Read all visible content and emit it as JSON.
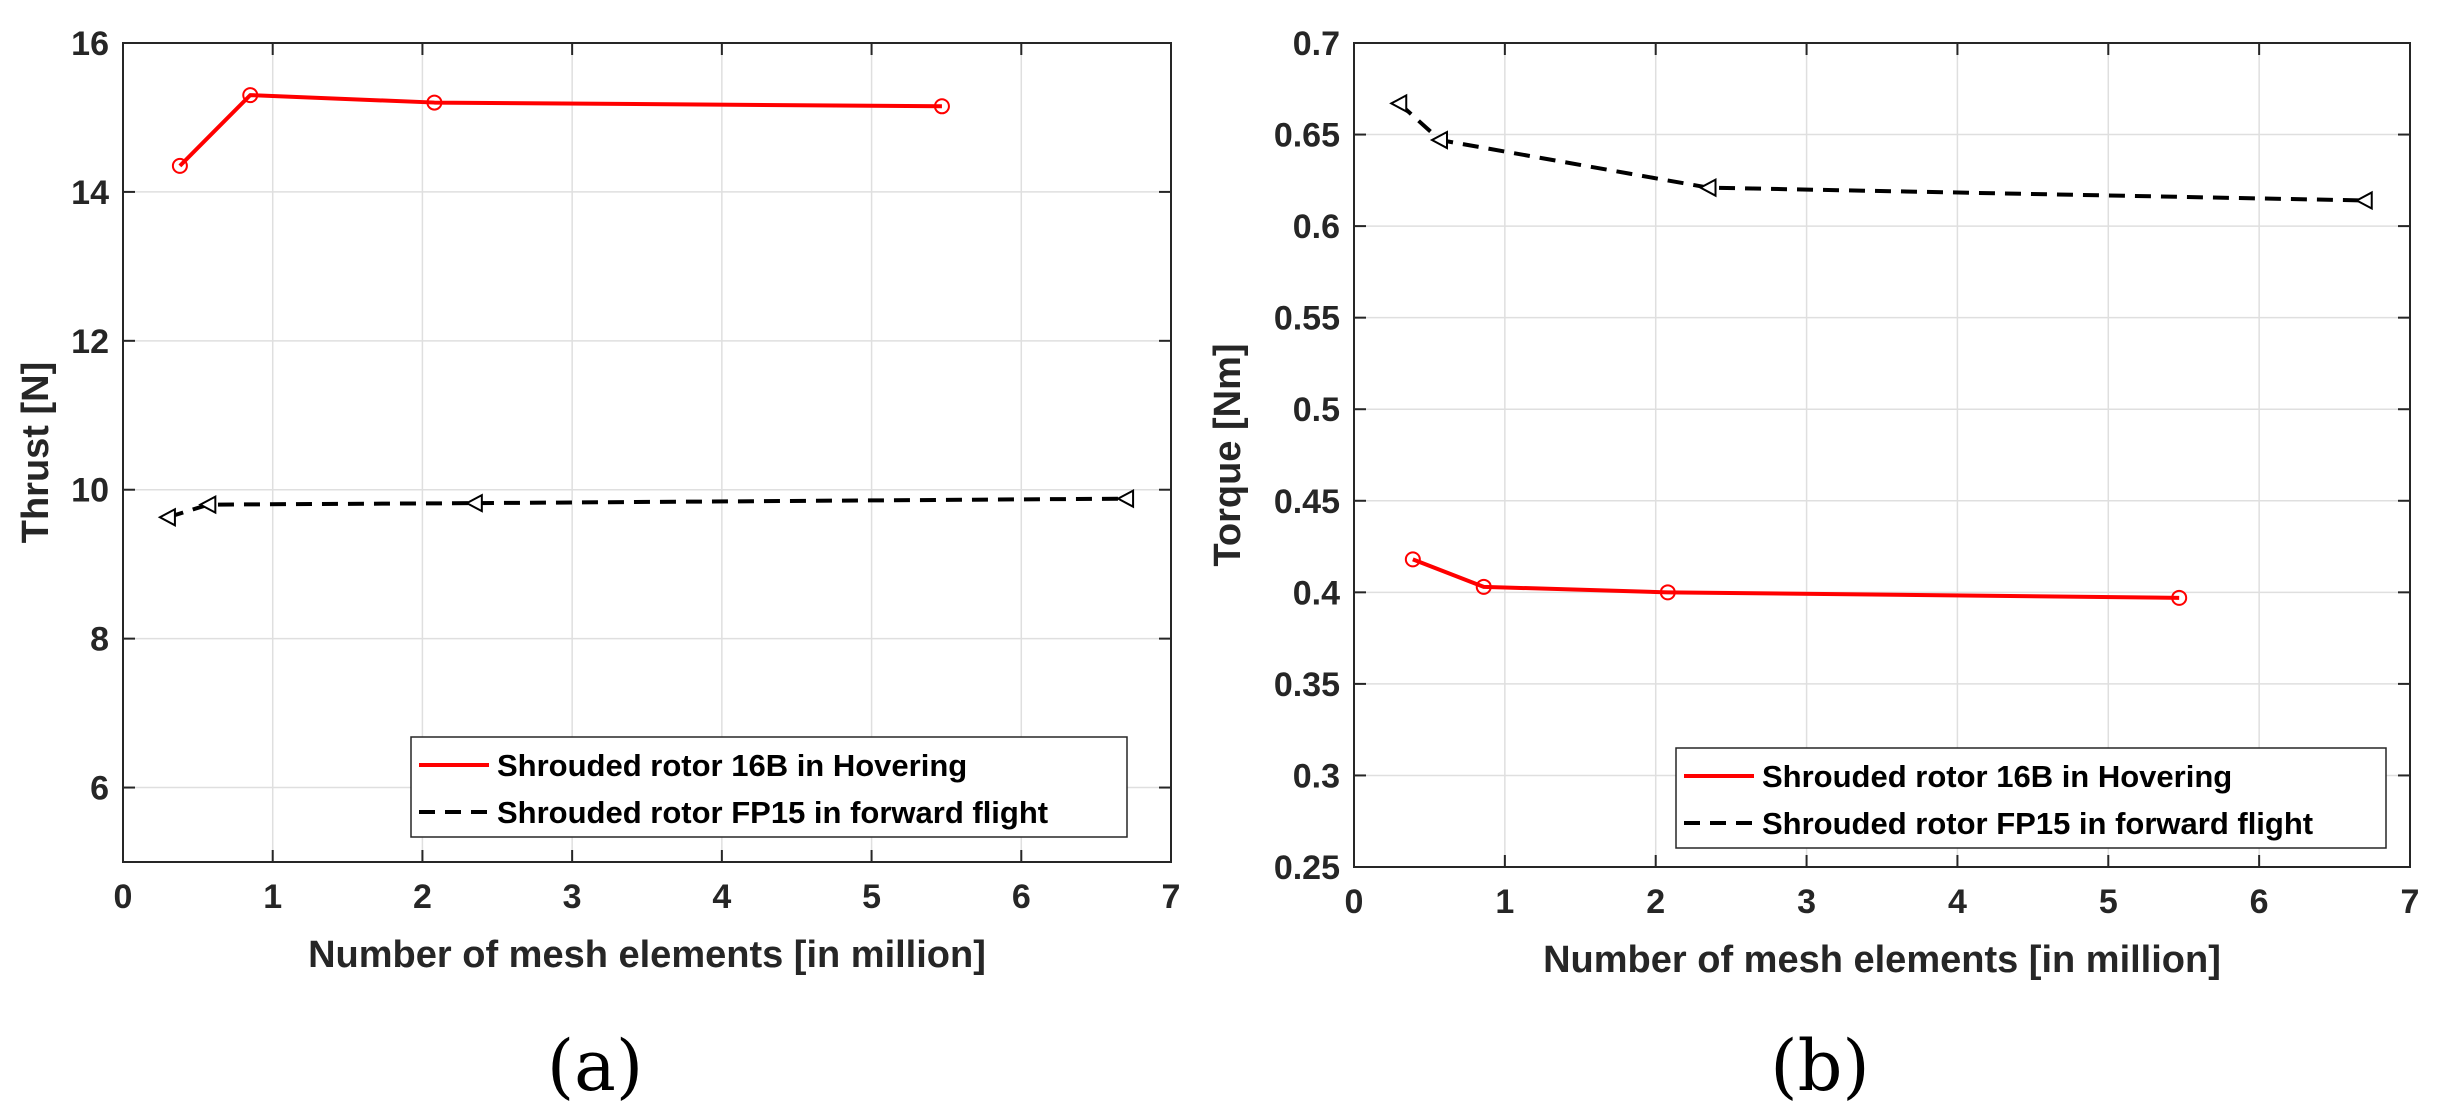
{
  "chart_data": [
    {
      "type": "line",
      "panel_label": "(a)",
      "xlabel": "Number of mesh elements [in million]",
      "ylabel": "Thrust [N]",
      "xlim": [
        0,
        7
      ],
      "ylim": [
        5,
        16
      ],
      "xticks": [
        0,
        1,
        2,
        3,
        4,
        5,
        6,
        7
      ],
      "yticks": [
        6,
        8,
        10,
        12,
        14,
        16
      ],
      "grid": true,
      "legend_position": "bottom-right",
      "series": [
        {
          "name": "Shrouded rotor 16B in Hovering",
          "color": "#ff0000",
          "style": "solid",
          "marker": "circle",
          "x": [
            0.38,
            0.85,
            2.08,
            5.47
          ],
          "y": [
            14.35,
            15.3,
            15.2,
            15.15
          ]
        },
        {
          "name": "Shrouded rotor FP15 in forward flight",
          "color": "#000000",
          "style": "dashed",
          "marker": "triangle-left",
          "x": [
            0.3,
            0.57,
            2.35,
            6.7
          ],
          "y": [
            9.63,
            9.8,
            9.82,
            9.88
          ]
        }
      ]
    },
    {
      "type": "line",
      "panel_label": "(b)",
      "xlabel": "Number of mesh elements [in million]",
      "ylabel": "Torque [Nm]",
      "xlim": [
        0,
        7
      ],
      "ylim": [
        0.25,
        0.7
      ],
      "xticks": [
        0,
        1,
        2,
        3,
        4,
        5,
        6,
        7
      ],
      "yticks": [
        0.25,
        0.3,
        0.35,
        0.4,
        0.45,
        0.5,
        0.55,
        0.6,
        0.65,
        0.7
      ],
      "ytick_labels": [
        "0.25",
        "0.3",
        "0.35",
        "0.4",
        "0.45",
        "0.5",
        "0.55",
        "0.6",
        "0.65",
        "0.7"
      ],
      "grid": true,
      "legend_position": "bottom-right",
      "series": [
        {
          "name": "Shrouded rotor 16B in Hovering",
          "color": "#ff0000",
          "style": "solid",
          "marker": "circle",
          "x": [
            0.39,
            0.86,
            2.08,
            5.47
          ],
          "y": [
            0.418,
            0.403,
            0.4,
            0.397
          ]
        },
        {
          "name": "Shrouded rotor FP15 in forward flight",
          "color": "#000000",
          "style": "dashed",
          "marker": "triangle-left",
          "x": [
            0.3,
            0.57,
            2.35,
            6.7
          ],
          "y": [
            0.667,
            0.647,
            0.621,
            0.614
          ]
        }
      ]
    }
  ]
}
